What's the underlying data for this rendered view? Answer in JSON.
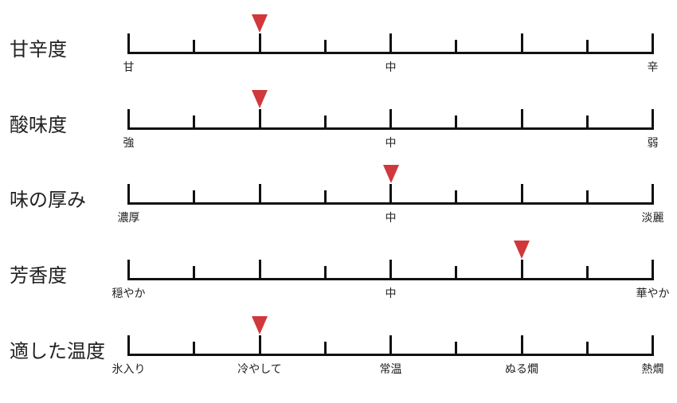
{
  "scale": {
    "positions": 9,
    "major_ticks": [
      0,
      2,
      4,
      6,
      8
    ]
  },
  "rows": [
    {
      "title": "甘辛度",
      "value": 2,
      "labels": [
        {
          "pos": 0,
          "text": "甘"
        },
        {
          "pos": 4,
          "text": "中"
        },
        {
          "pos": 8,
          "text": "辛"
        }
      ]
    },
    {
      "title": "酸味度",
      "value": 2,
      "labels": [
        {
          "pos": 0,
          "text": "強"
        },
        {
          "pos": 4,
          "text": "中"
        },
        {
          "pos": 8,
          "text": "弱"
        }
      ]
    },
    {
      "title": "味の厚み",
      "value": 4,
      "labels": [
        {
          "pos": 0,
          "text": "濃厚"
        },
        {
          "pos": 4,
          "text": "中"
        },
        {
          "pos": 8,
          "text": "淡麗"
        }
      ]
    },
    {
      "title": "芳香度",
      "value": 6,
      "labels": [
        {
          "pos": 0,
          "text": "穏やか"
        },
        {
          "pos": 4,
          "text": "中"
        },
        {
          "pos": 8,
          "text": "華やか"
        }
      ]
    },
    {
      "title": "適した温度",
      "value": 2,
      "labels": [
        {
          "pos": 0,
          "text": "氷入り"
        },
        {
          "pos": 2,
          "text": "冷やして"
        },
        {
          "pos": 4,
          "text": "常温"
        },
        {
          "pos": 6,
          "text": "ぬる燗"
        },
        {
          "pos": 8,
          "text": "熱燗"
        }
      ]
    }
  ],
  "colors": {
    "marker": "#d0383b",
    "axis": "#111111"
  }
}
